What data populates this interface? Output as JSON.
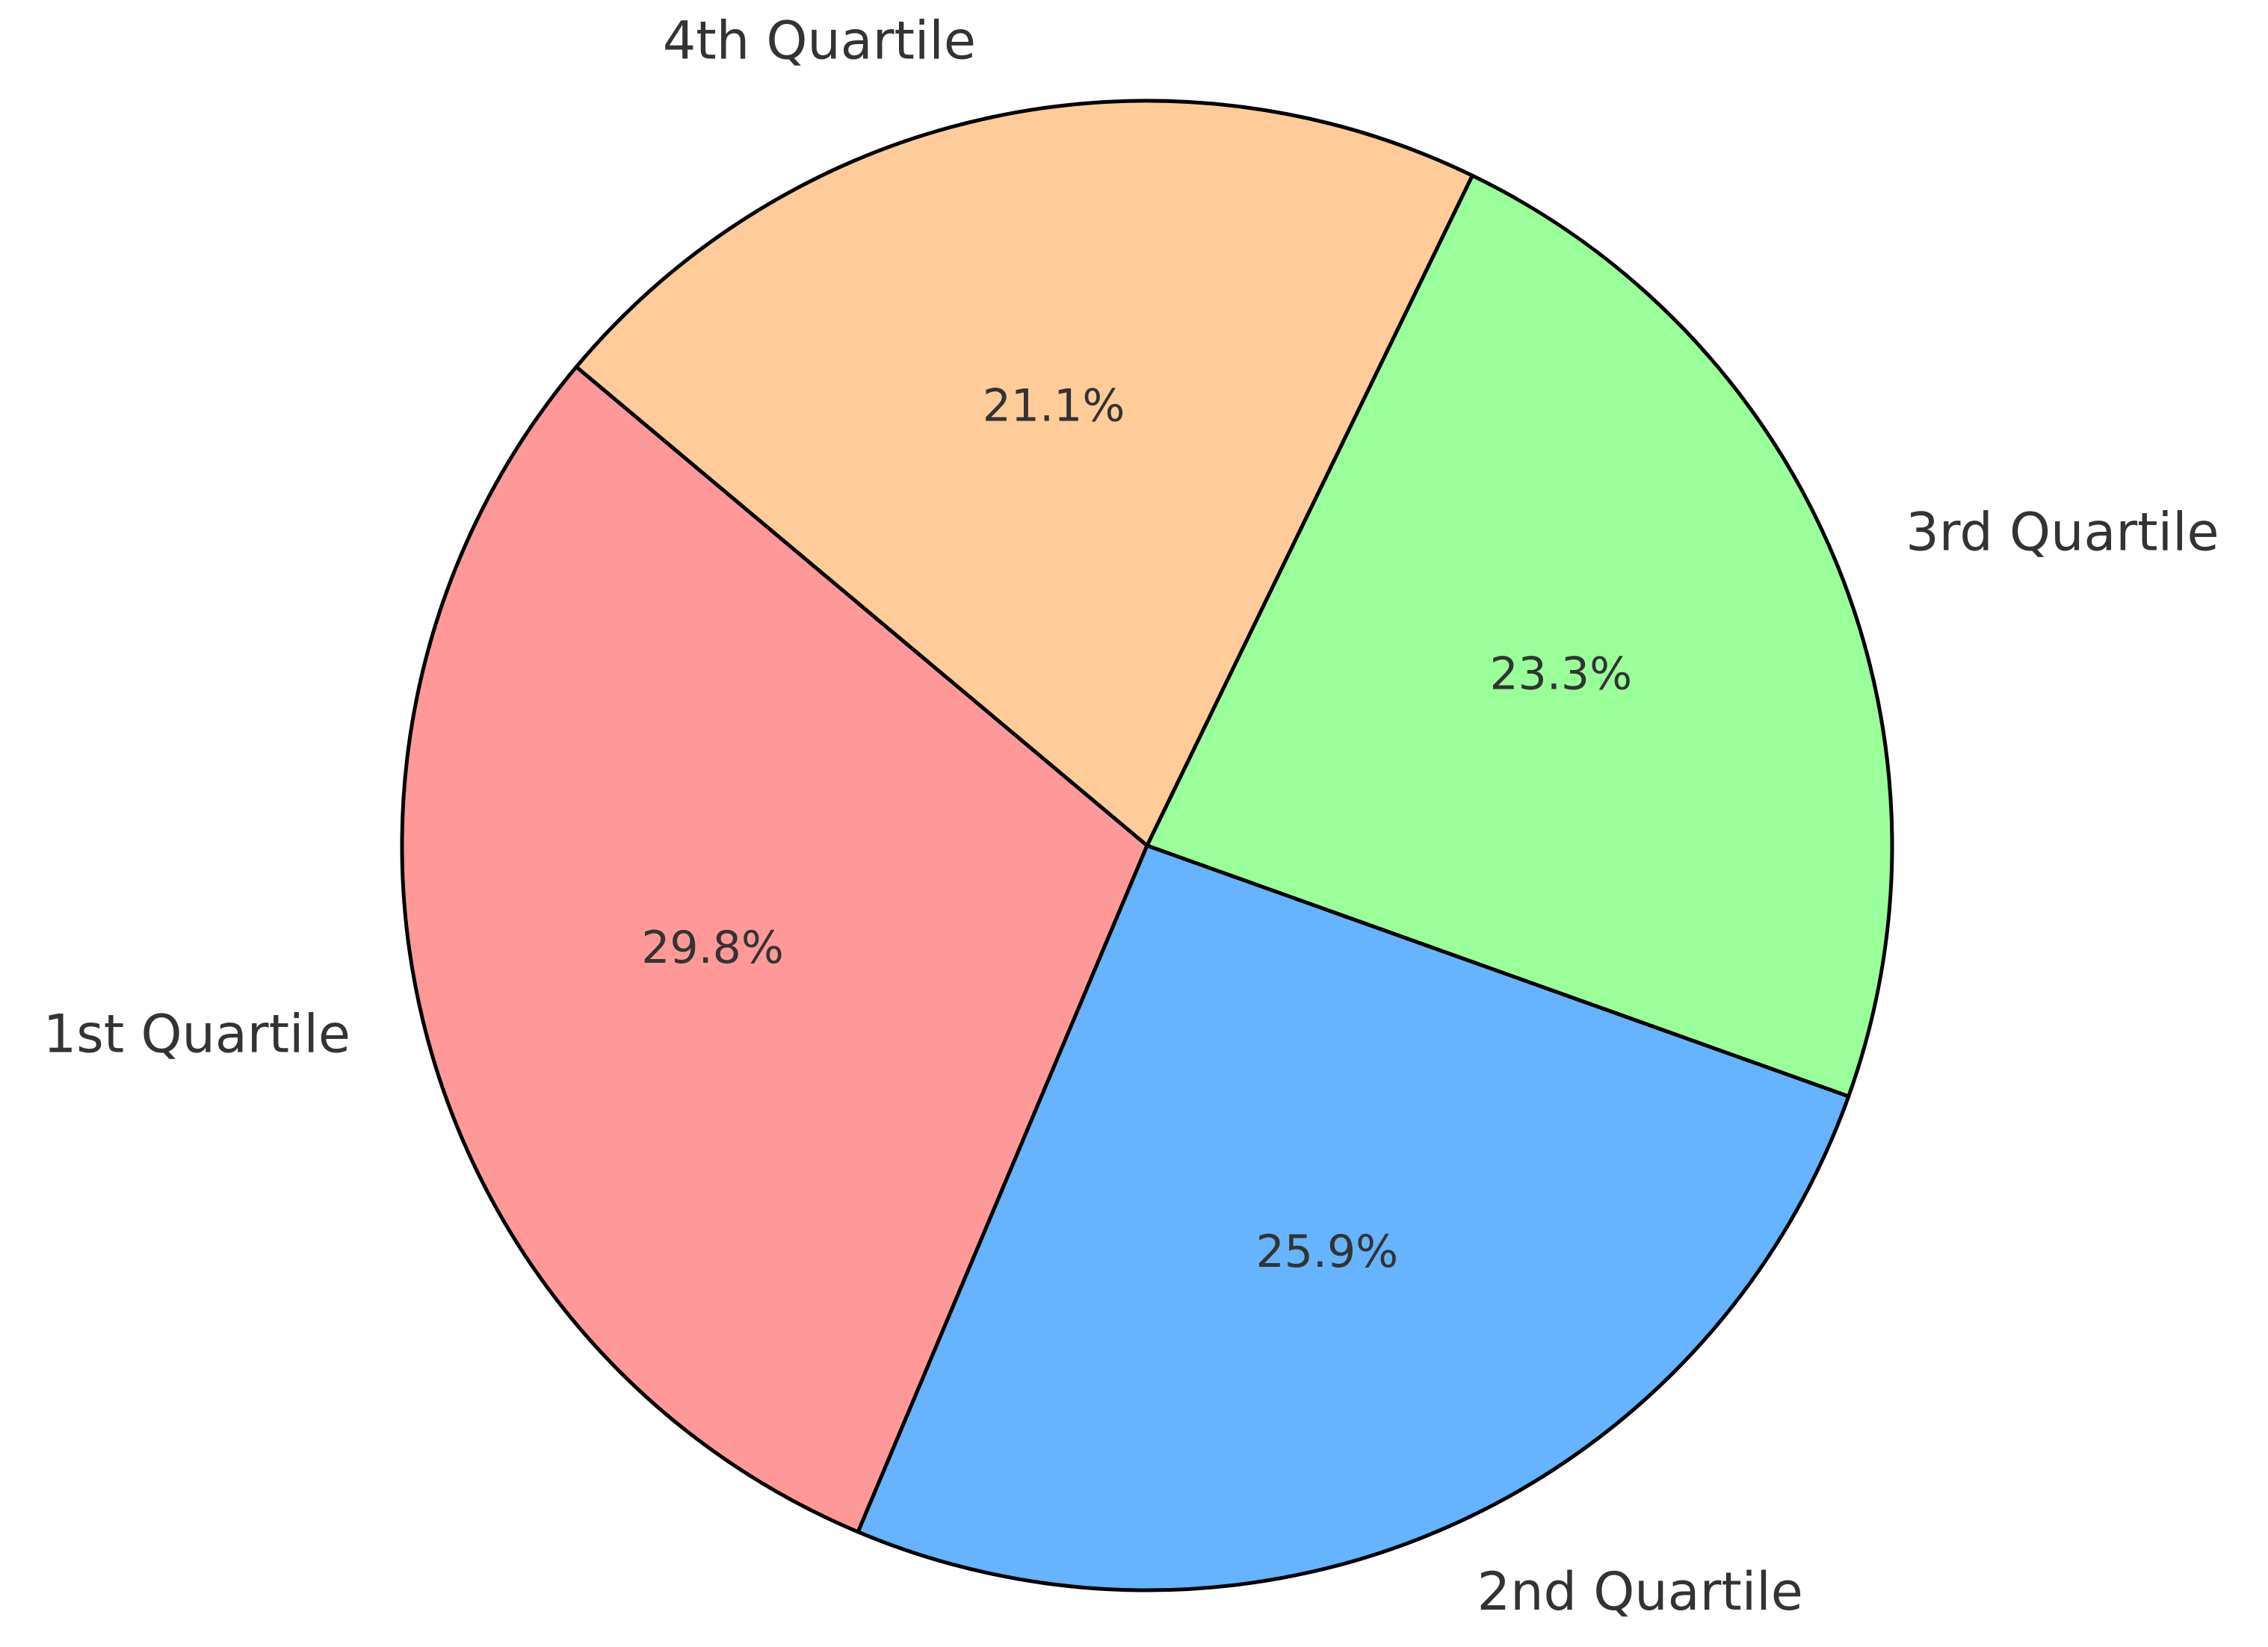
{
  "chart_data": {
    "type": "pie",
    "categories": [
      "1st Quartile",
      "2nd Quartile",
      "3rd Quartile",
      "4th Quartile"
    ],
    "values": [
      29.8,
      25.9,
      23.3,
      21.1
    ],
    "value_labels": [
      "29.8%",
      "25.9%",
      "23.3%",
      "21.1%"
    ],
    "colors": [
      "#ff9999",
      "#66b3ff",
      "#99ff99",
      "#ffcc99"
    ],
    "start_angle": 140
  }
}
